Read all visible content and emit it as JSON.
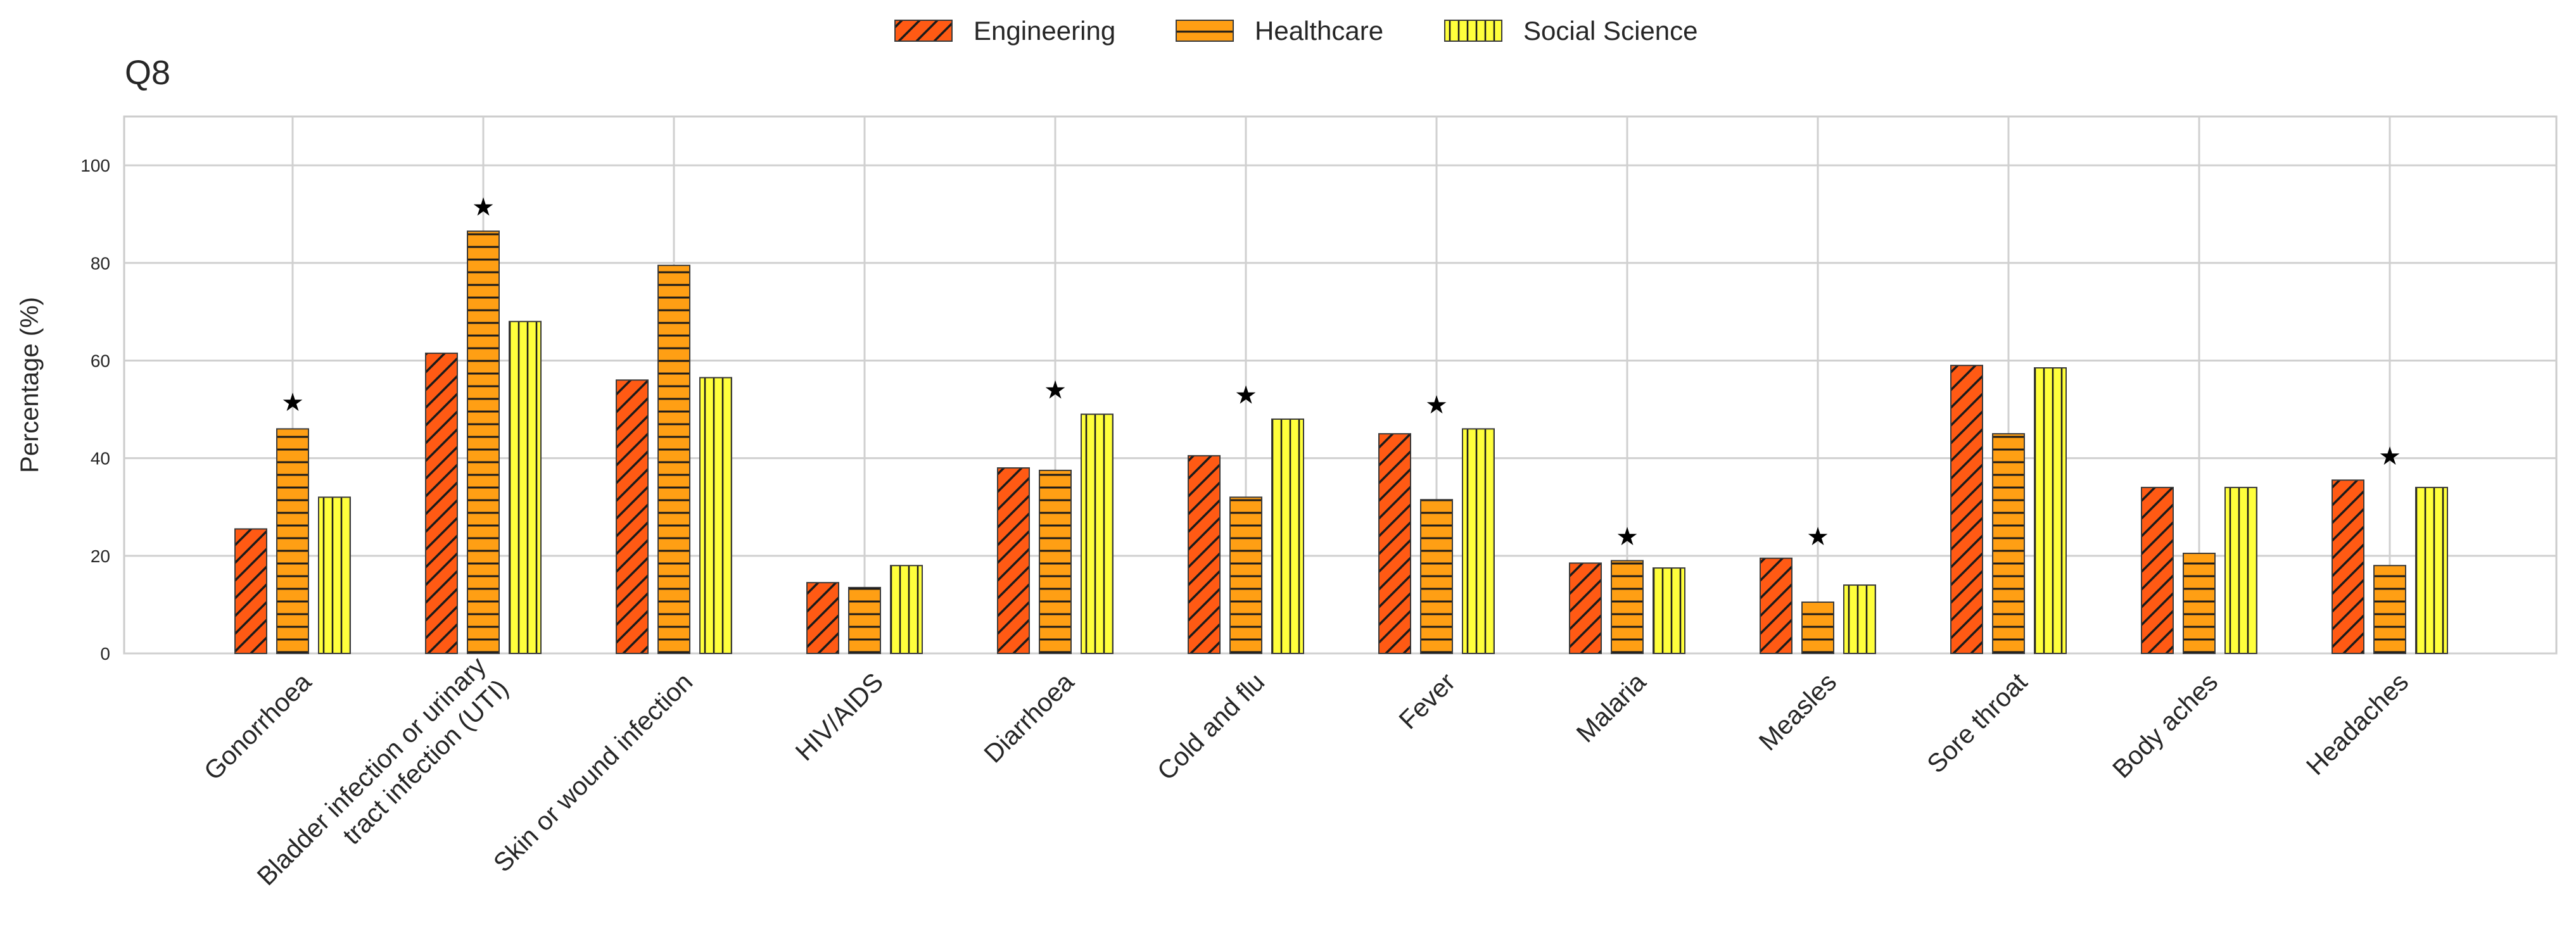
{
  "chart_data": {
    "type": "bar",
    "title": "Q8",
    "xlabel": "",
    "ylabel": "Percentage (%)",
    "ylim": [
      0,
      110
    ],
    "yticks": [
      0,
      20,
      40,
      60,
      80,
      100
    ],
    "grid": true,
    "legend_position": "top-center",
    "categories": [
      "Gonorrhoea",
      "Bladder infection or urinary|tract infection (UTI)",
      "Skin or wound infection",
      "HIV/AIDS",
      "Diarrhoea",
      "Cold and flu",
      "Fever",
      "Malaria",
      "Measles",
      "Sore throat",
      "Body aches",
      "Headaches"
    ],
    "series": [
      {
        "name": "Engineering",
        "color": "#ff5a14",
        "pattern": "diagonal",
        "values": [
          25.5,
          61.5,
          56,
          14.5,
          38,
          40.5,
          45,
          18.5,
          19.5,
          59,
          34,
          35.5
        ]
      },
      {
        "name": "Healthcare",
        "color": "#ff9f14",
        "pattern": "horizontal",
        "values": [
          46,
          86.5,
          79.5,
          13.5,
          37.5,
          32,
          31.5,
          19,
          10.5,
          45,
          20.5,
          18
        ]
      },
      {
        "name": "Social Science",
        "color": "#ffff3c",
        "pattern": "vertical",
        "values": [
          32,
          68,
          56.5,
          18,
          49,
          48,
          46,
          17.5,
          14,
          58.5,
          34,
          34
        ]
      }
    ],
    "significance_marker": "★",
    "significance_values": [
      51.5,
      91.5,
      null,
      null,
      54,
      53,
      51,
      24,
      24,
      null,
      null,
      40.5
    ]
  }
}
